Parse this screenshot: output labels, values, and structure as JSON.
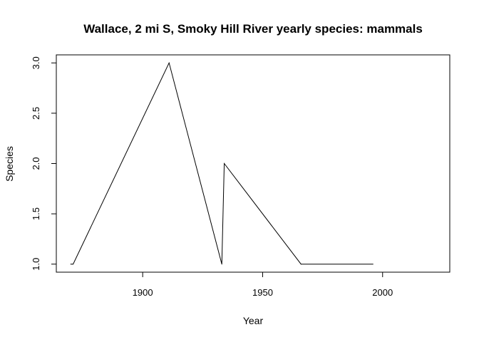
{
  "chart_data": {
    "type": "line",
    "title": "Wallace, 2 mi S, Smoky Hill River yearly species: mammals",
    "xlabel": "Year",
    "ylabel": "Species",
    "xlim": [
      1864,
      2028
    ],
    "ylim": [
      0.92,
      3.08
    ],
    "xticks": [
      "1900",
      "1950",
      "2000"
    ],
    "xtick_values": [
      1900,
      1950,
      2000
    ],
    "yticks": [
      "1.0",
      "1.5",
      "2.0",
      "2.5",
      "3.0"
    ],
    "ytick_values": [
      1.0,
      1.5,
      2.0,
      2.5,
      3.0
    ],
    "grid": false,
    "series": [
      {
        "x": [
          1870,
          1871,
          1911,
          1933,
          1934,
          1966,
          1996
        ],
        "values": [
          1,
          1,
          3,
          1,
          2,
          1,
          1
        ]
      }
    ],
    "colors": {
      "line": "#000000",
      "axis": "#000000",
      "background": "#ffffff"
    }
  }
}
